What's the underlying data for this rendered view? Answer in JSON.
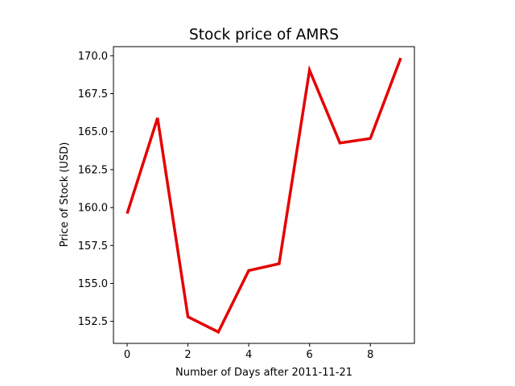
{
  "chart_data": {
    "type": "line",
    "title": "Stock price of AMRS",
    "xlabel": "Number of Days after 2011-11-21",
    "ylabel": "Price of Stock (USD)",
    "x": [
      0,
      1,
      2,
      3,
      4,
      5,
      6,
      7,
      8,
      9
    ],
    "series": [
      {
        "values": [
          159.6,
          165.9,
          152.8,
          151.8,
          155.85,
          156.3,
          169.05,
          164.25,
          164.55,
          169.85
        ],
        "color": "#e50000"
      }
    ],
    "xlim": [
      -0.45,
      9.45
    ],
    "ylim": [
      151.05,
      170.6
    ],
    "xticks": [
      0,
      2,
      4,
      6,
      8
    ],
    "xtick_labels": [
      "0",
      "2",
      "4",
      "6",
      "8"
    ],
    "yticks": [
      152.5,
      155.0,
      157.5,
      160.0,
      162.5,
      165.0,
      167.5,
      170.0
    ],
    "ytick_labels": [
      "152.5",
      "155.0",
      "157.5",
      "160.0",
      "162.5",
      "165.0",
      "167.5",
      "170.0"
    ],
    "grid": false,
    "legend": "none"
  }
}
